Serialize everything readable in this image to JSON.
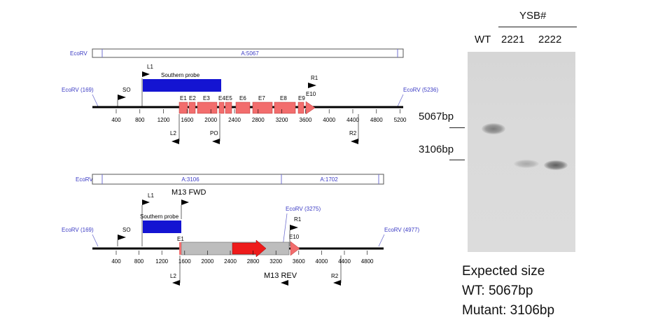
{
  "top_map": {
    "fragment_enzyme": "EcoRV",
    "fragment_label": "A:5067",
    "left_site": "EcoRV (169)",
    "right_site": "EcoRV (5236)",
    "probe_label": "Southern probe",
    "primers": [
      "L1",
      "SO",
      "R1",
      "L2",
      "PO",
      "R2"
    ],
    "exons": [
      "E1",
      "E2",
      "E3",
      "E4",
      "E5",
      "E6",
      "E7",
      "E8",
      "E9",
      "E10"
    ],
    "scale": [
      "400",
      "800",
      "1200",
      "1600",
      "2000",
      "2400",
      "2800",
      "3200",
      "3600",
      "4000",
      "4400",
      "4800",
      "5200"
    ]
  },
  "bottom_map": {
    "fragment_enzyme": "EcoRV",
    "fragment_label_a": "A:3106",
    "fragment_label_b": "A:1702",
    "left_site": "EcoRV (169)",
    "mid_site": "EcoRV (3275)",
    "right_site": "EcoRV (4977)",
    "probe_label": "Southern probe",
    "primers": [
      "L1",
      "M13 FWD",
      "SO",
      "R1",
      "L2",
      "M13 REV",
      "R2"
    ],
    "exons": [
      "E1",
      "E10"
    ],
    "scale": [
      "400",
      "800",
      "1200",
      "1600",
      "2000",
      "2400",
      "2800",
      "3200",
      "3600",
      "4000",
      "4400",
      "4800"
    ]
  },
  "blot": {
    "group_label": "YSB#",
    "lanes": [
      "WT",
      "2221",
      "2222"
    ],
    "size_markers": [
      "5067bp",
      "3106bp"
    ]
  },
  "expected": {
    "heading": "Expected size",
    "wt": "WT: 5067bp",
    "mutant": "Mutant: 3106bp"
  },
  "colors": {
    "probe": "#1414d2",
    "exon": "#f26d6d",
    "cassette_grey": "#bdbdbd",
    "cassette_red": "#ee1b1b",
    "site_text": "#3b3bc4"
  }
}
